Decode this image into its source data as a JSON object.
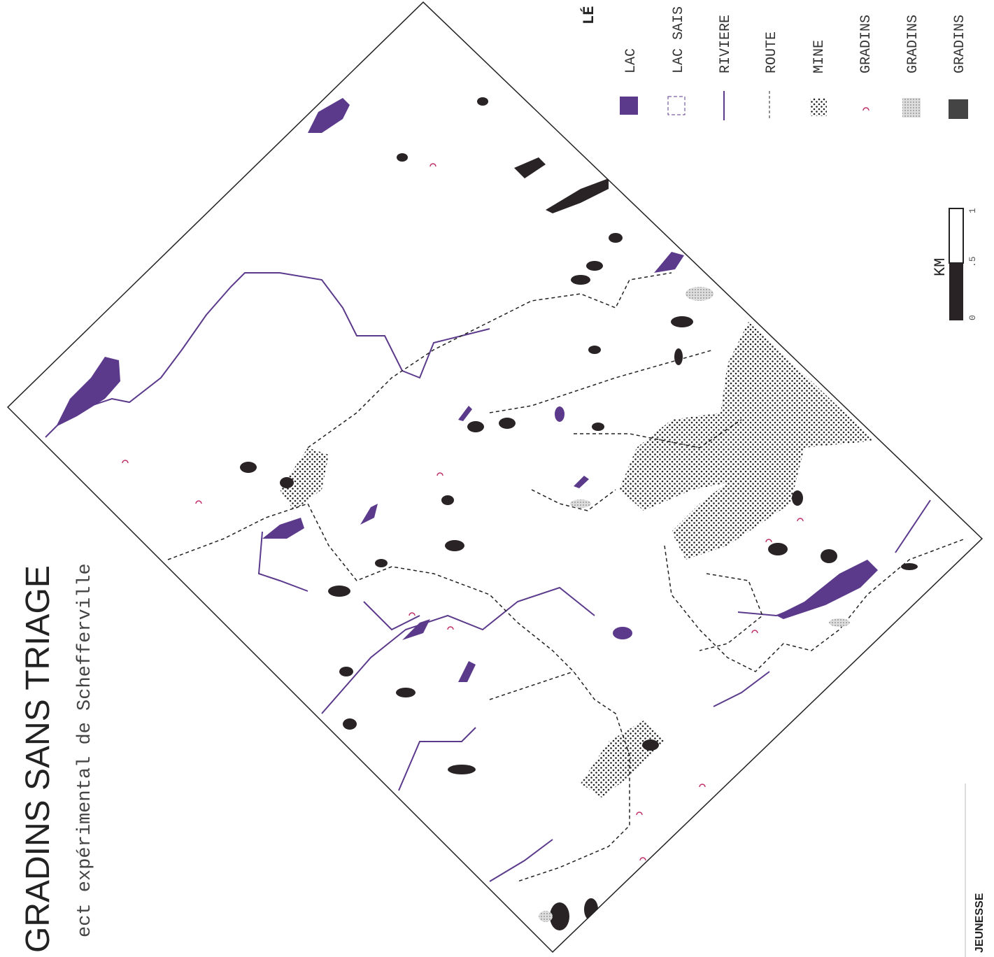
{
  "header": {
    "title": "GRADINS SANS TRIAGE",
    "subtitle": "ect expérimental de Schefferville"
  },
  "legend": {
    "title": "LÉ",
    "items": [
      "LAC",
      "LAC SAIS",
      "RIVIERE",
      "ROUTE",
      "MINE",
      "GRADINS",
      "GRADINS",
      "GRADINS"
    ]
  },
  "scale": {
    "unit": "KM",
    "ticks": [
      "0",
      ".5",
      "1"
    ]
  },
  "footer": "JEUNESSE"
}
